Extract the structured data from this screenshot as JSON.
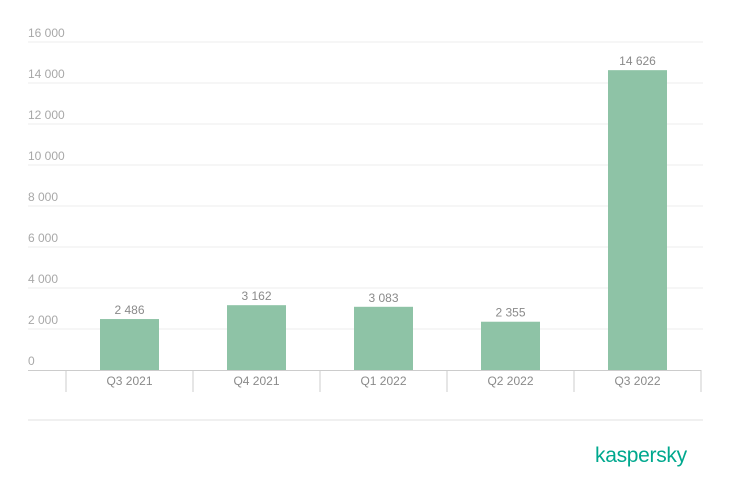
{
  "chart_data": {
    "type": "bar",
    "categories": [
      "Q3 2021",
      "Q4 2021",
      "Q1 2022",
      "Q2 2022",
      "Q3 2022"
    ],
    "values": [
      2486,
      3162,
      3083,
      2355,
      14626
    ],
    "value_labels": [
      "2 486",
      "3 162",
      "3 083",
      "2 355",
      "14 626"
    ],
    "yticks": [
      0,
      2000,
      4000,
      6000,
      8000,
      10000,
      12000,
      14000,
      16000
    ],
    "ytick_labels": [
      "0",
      "2 000",
      "4 000",
      "6 000",
      "8 000",
      "10 000",
      "12 000",
      "14 000",
      "16 000"
    ],
    "ylim": [
      0,
      16000
    ],
    "title": "",
    "xlabel": "",
    "ylabel": "",
    "grid": true,
    "legend": "none",
    "bar_color": "#8ec3a6",
    "grid_color": "#ececec",
    "axis_color": "#cccccc"
  },
  "branding": {
    "logo_text": "kaspersky",
    "color": "#00a88e"
  }
}
